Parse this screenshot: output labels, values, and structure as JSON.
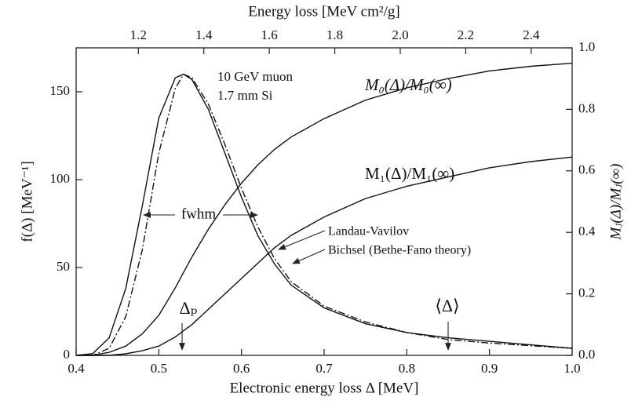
{
  "chart_data": {
    "type": "line",
    "xlabel": "Electronic energy loss Δ  [MeV]",
    "ylabel": "f(Δ)  [MeV⁻¹]",
    "y2label": "Mⱼ(Δ)/Mⱼ(∞)",
    "x2label": "Energy loss  [MeV cm²/g]",
    "xlim": [
      0.4,
      1.0
    ],
    "xticks": [
      0.4,
      0.5,
      0.6,
      0.7,
      0.8,
      0.9,
      {
        "value": 1,
        "label": "1.0"
      }
    ],
    "ylim": [
      0,
      175
    ],
    "yticks": [
      0,
      50,
      100,
      150
    ],
    "y2lim": [
      0,
      1
    ],
    "y2ticks": [
      {
        "value": 0,
        "label": "0.0"
      },
      0.2,
      0.4,
      0.6,
      0.8,
      {
        "value": 1,
        "label": "1.0"
      }
    ],
    "x2lim": [
      1.01,
      2.525
    ],
    "x2ticks": [
      1.2,
      1.4,
      1.6,
      1.8,
      {
        "value": 2,
        "label": "2.0"
      },
      2.2,
      2.4
    ],
    "annotations": [
      "10 GeV muon",
      "1.7 mm Si",
      "fwhm",
      "Δₚ",
      "⟨Δ⟩"
    ],
    "x": [
      0.4,
      0.42,
      0.44,
      0.46,
      0.48,
      0.5,
      0.52,
      0.53,
      0.54,
      0.56,
      0.58,
      0.6,
      0.62,
      0.64,
      0.66,
      0.7,
      0.75,
      0.8,
      0.85,
      0.9,
      0.95,
      1.0
    ],
    "series": [
      {
        "name": "Bichsel (Bethe-Fano theory)",
        "color": "#111111",
        "dash": "solid",
        "values": [
          0,
          1,
          10,
          38,
          85,
          135,
          158,
          160,
          157,
          140,
          115,
          90,
          68,
          52,
          40,
          27,
          18,
          13,
          10,
          8,
          6,
          4
        ]
      },
      {
        "name": "Landau-Vavilov",
        "color": "#111111",
        "dash": "dashdot",
        "values": [
          0,
          0,
          4,
          22,
          60,
          115,
          152,
          160,
          158,
          143,
          120,
          95,
          73,
          55,
          42,
          28,
          19,
          13,
          9,
          7,
          5.5,
          4
        ]
      },
      {
        "name": "M₀(Δ)/M₀(∞)",
        "color": "#111111",
        "dash": "solid",
        "axis": "y2",
        "values": [
          0,
          0,
          0.01,
          0.03,
          0.07,
          0.13,
          0.22,
          0.27,
          0.32,
          0.41,
          0.49,
          0.56,
          0.62,
          0.67,
          0.71,
          0.77,
          0.83,
          0.87,
          0.9,
          0.925,
          0.94,
          0.95
        ]
      },
      {
        "name": "M₁(Δ)/M₁(∞)",
        "color": "#111111",
        "dash": "solid",
        "axis": "y2",
        "values": [
          0,
          0,
          0,
          0.005,
          0.015,
          0.03,
          0.06,
          0.08,
          0.1,
          0.15,
          0.2,
          0.25,
          0.3,
          0.35,
          0.39,
          0.45,
          0.51,
          0.55,
          0.58,
          0.61,
          0.63,
          0.645
        ]
      }
    ]
  }
}
